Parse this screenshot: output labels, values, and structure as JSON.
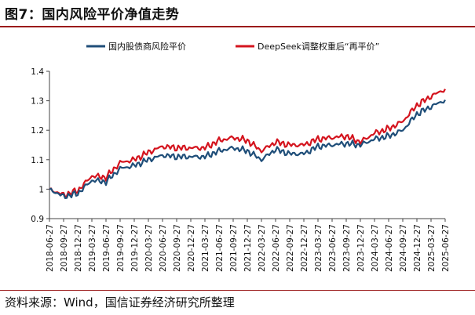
{
  "title": "图7：国内风险平价净值走势",
  "source": "资料来源：Wind，国信证券经济研究所整理",
  "colors": {
    "series1": "#1f4e79",
    "series2": "#d4141e",
    "rule": "#9b1b1b"
  },
  "chart_data": {
    "type": "line",
    "title": "国内风险平价净值走势",
    "xlabel": "",
    "ylabel": "",
    "ylim": [
      0.9,
      1.4
    ],
    "yticks": [
      "0.9",
      "1",
      "1.1",
      "1.2",
      "1.3",
      "1.4"
    ],
    "legend_position": "top",
    "categories": [
      "2018-06-27",
      "2018-09-27",
      "2018-12-27",
      "2019-03-27",
      "2019-06-27",
      "2019-09-27",
      "2019-12-27",
      "2020-03-27",
      "2020-06-27",
      "2020-09-27",
      "2020-12-27",
      "2021-03-27",
      "2021-06-27",
      "2021-09-27",
      "2021-12-27",
      "2022-03-27",
      "2022-06-27",
      "2022-09-27",
      "2022-12-27",
      "2023-03-27",
      "2023-06-27",
      "2023-09-27",
      "2023-12-27",
      "2024-03-27",
      "2024-06-27",
      "2024-09-27",
      "2024-12-27",
      "2025-03-27",
      "2025-06-27"
    ],
    "series": [
      {
        "name": "国内股债商风险平价",
        "color": "#1f4e79",
        "values": [
          1.0,
          0.975,
          0.985,
          1.03,
          1.025,
          1.07,
          1.08,
          1.1,
          1.115,
          1.11,
          1.11,
          1.11,
          1.13,
          1.14,
          1.13,
          1.1,
          1.135,
          1.12,
          1.12,
          1.145,
          1.15,
          1.155,
          1.15,
          1.17,
          1.18,
          1.2,
          1.255,
          1.28,
          1.303
        ]
      },
      {
        "name": "DeepSeek调整权重后“再平价”",
        "color": "#d4141e",
        "values": [
          1.0,
          0.98,
          0.995,
          1.045,
          1.04,
          1.09,
          1.1,
          1.125,
          1.145,
          1.14,
          1.14,
          1.14,
          1.165,
          1.175,
          1.165,
          1.13,
          1.16,
          1.15,
          1.15,
          1.17,
          1.175,
          1.18,
          1.16,
          1.19,
          1.205,
          1.23,
          1.285,
          1.315,
          1.34
        ]
      }
    ]
  }
}
